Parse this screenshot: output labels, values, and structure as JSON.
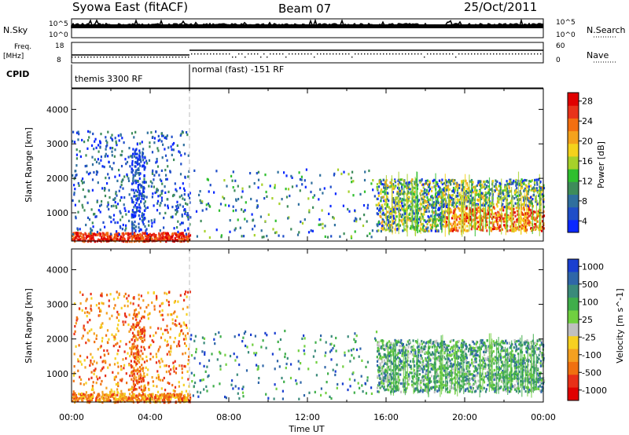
{
  "header": {
    "title": "Syowa East (fitACF)",
    "beam": "Beam 07",
    "date": "25/Oct/2011"
  },
  "aux_panels": {
    "nsky_label": "N.Sky",
    "nsky_top": "10^5",
    "nsky_bottom": "10^0",
    "nsearch_label": "N.Search",
    "nsearch_top": "10^5",
    "nsearch_bottom": "10^0",
    "freq_label": "Freq.",
    "freq_unit": "[MHz]",
    "freq_top": "18",
    "freq_bottom": "8",
    "nave_label": "Nave",
    "nave_top": "60",
    "nave_bottom": "0",
    "cpid_label": "CPID",
    "cpid_modes": [
      "themis 3300 RF",
      "normal (fast) -151 RF"
    ]
  },
  "chart_data": [
    {
      "type": "heatmap",
      "name": "power-panel",
      "ylabel": "Slant Range [km]",
      "ylim": [
        180,
        4600
      ],
      "yticks": [
        1000,
        2000,
        3000,
        4000
      ],
      "xlim": [
        0,
        24
      ],
      "colorbar": {
        "label": "Power [dB]",
        "ticks": [
          "4",
          "8",
          "12",
          "16",
          "20",
          "24",
          "28"
        ],
        "colors": [
          "#0a28ff",
          "#1f4ec8",
          "#2f6f9e",
          "#3e8c5a",
          "#2fbf2f",
          "#a6d12a",
          "#f4d21c",
          "#f4a21c",
          "#f36f10",
          "#e8331a",
          "#e00000"
        ]
      },
      "mode_change_hour": 6.0
    },
    {
      "type": "heatmap",
      "name": "velocity-panel",
      "ylabel": "Slant Range [km]",
      "ylim": [
        180,
        4600
      ],
      "yticks": [
        1000,
        2000,
        3000,
        4000
      ],
      "xlim": [
        0,
        24
      ],
      "colorbar": {
        "label": "Velocity [m s^-1]",
        "ticks": [
          "1000",
          "500",
          "100",
          "25",
          "-25",
          "-100",
          "-500",
          "-1000"
        ],
        "colors": [
          "#1a3fd0",
          "#2f66a8",
          "#3a8a7a",
          "#3fae4a",
          "#70d040",
          "#c0c0c0",
          "#f6d020",
          "#f4a020",
          "#f07010",
          "#e83018",
          "#e00000"
        ]
      },
      "mode_change_hour": 6.0
    }
  ],
  "xaxis": {
    "label": "Time UT",
    "ticks": [
      "00:00",
      "04:00",
      "08:00",
      "12:00",
      "16:00",
      "20:00",
      "00:00"
    ]
  }
}
